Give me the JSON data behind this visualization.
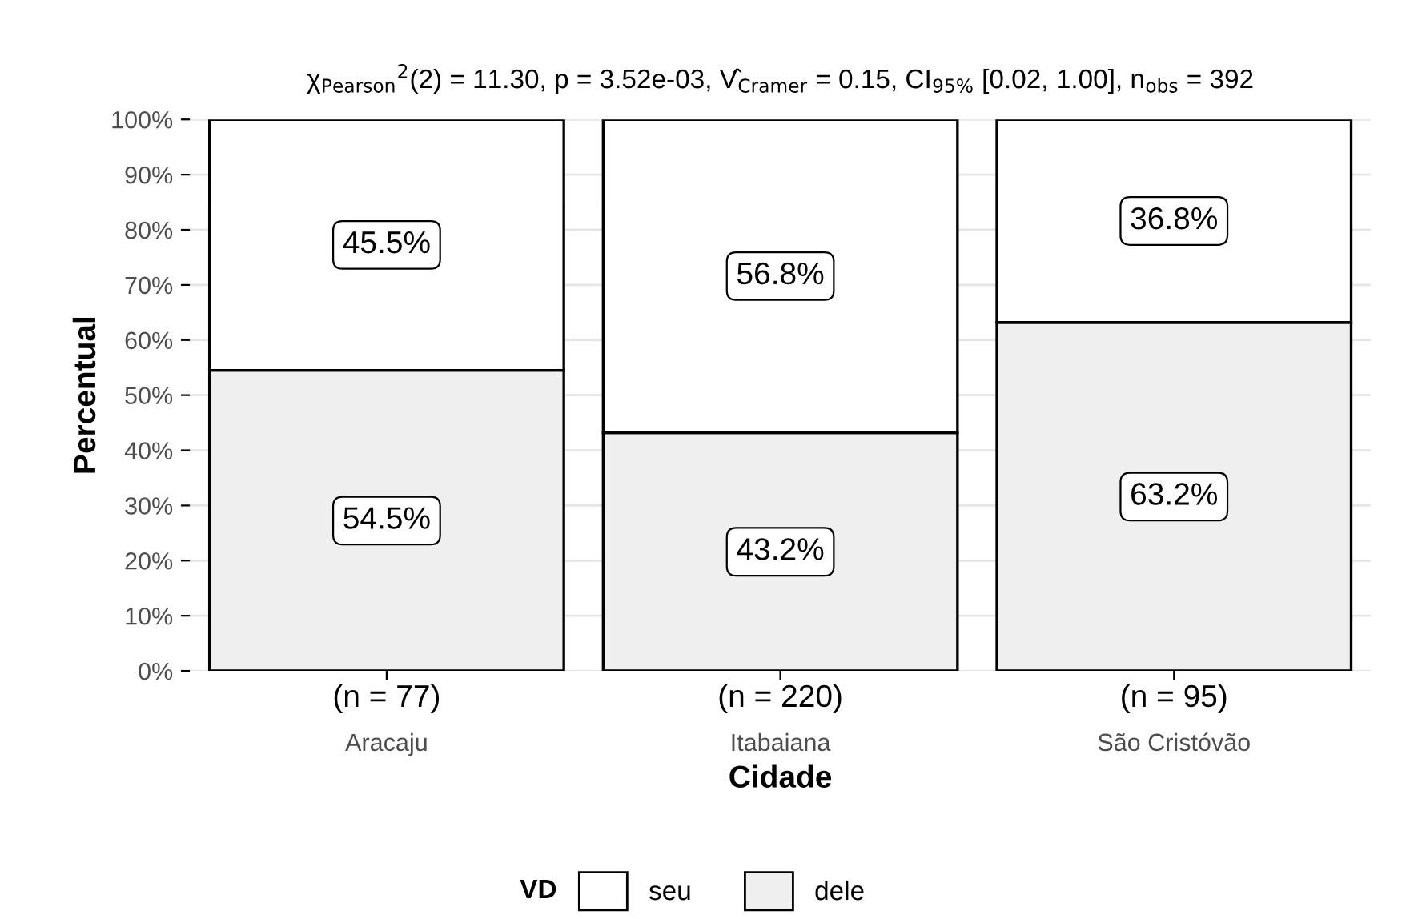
{
  "chart_data": {
    "type": "bar",
    "stacked": true,
    "title": "χ$_{Pearson}$$^{2}$(2) = 11.30, p = 3.52e-03, V̂$_{Cramer}$ = 0.15, CI$_{95%}$ [0.02, 1.00], n$_{obs}$ = 392",
    "xlabel": "Cidade",
    "ylabel": "Percentual",
    "legend_title": "VD",
    "legend": "bottom",
    "grid": "y",
    "categories": [
      "Aracaju",
      "Itabaiana",
      "São Cristóvão"
    ],
    "series": [
      {
        "name": "dele",
        "color": "#efefef",
        "values": [
          54.5,
          43.2,
          63.2
        ],
        "value_labels": [
          "54.5%",
          "43.2%",
          "63.2%"
        ]
      },
      {
        "name": "seu",
        "color": "#ffffff",
        "values": [
          45.5,
          56.8,
          36.8
        ],
        "value_labels": [
          "45.5%",
          "56.8%",
          "36.8%"
        ]
      }
    ],
    "ylim": [
      0,
      100
    ],
    "yticks": [
      {
        "value": 0,
        "label": "0%"
      },
      {
        "value": 10,
        "label": "10%"
      },
      {
        "value": 20,
        "label": "20%"
      },
      {
        "value": 30,
        "label": "30%"
      },
      {
        "value": 40,
        "label": "40%"
      },
      {
        "value": 50,
        "label": "50%"
      },
      {
        "value": 60,
        "label": "60%"
      },
      {
        "value": 70,
        "label": "70%"
      },
      {
        "value": 80,
        "label": "80%"
      },
      {
        "value": 90,
        "label": "90%"
      },
      {
        "value": 100,
        "label": "100%"
      }
    ],
    "annotations": [
      "(n = 77)",
      "(n = 220)",
      "(n = 95)"
    ]
  }
}
